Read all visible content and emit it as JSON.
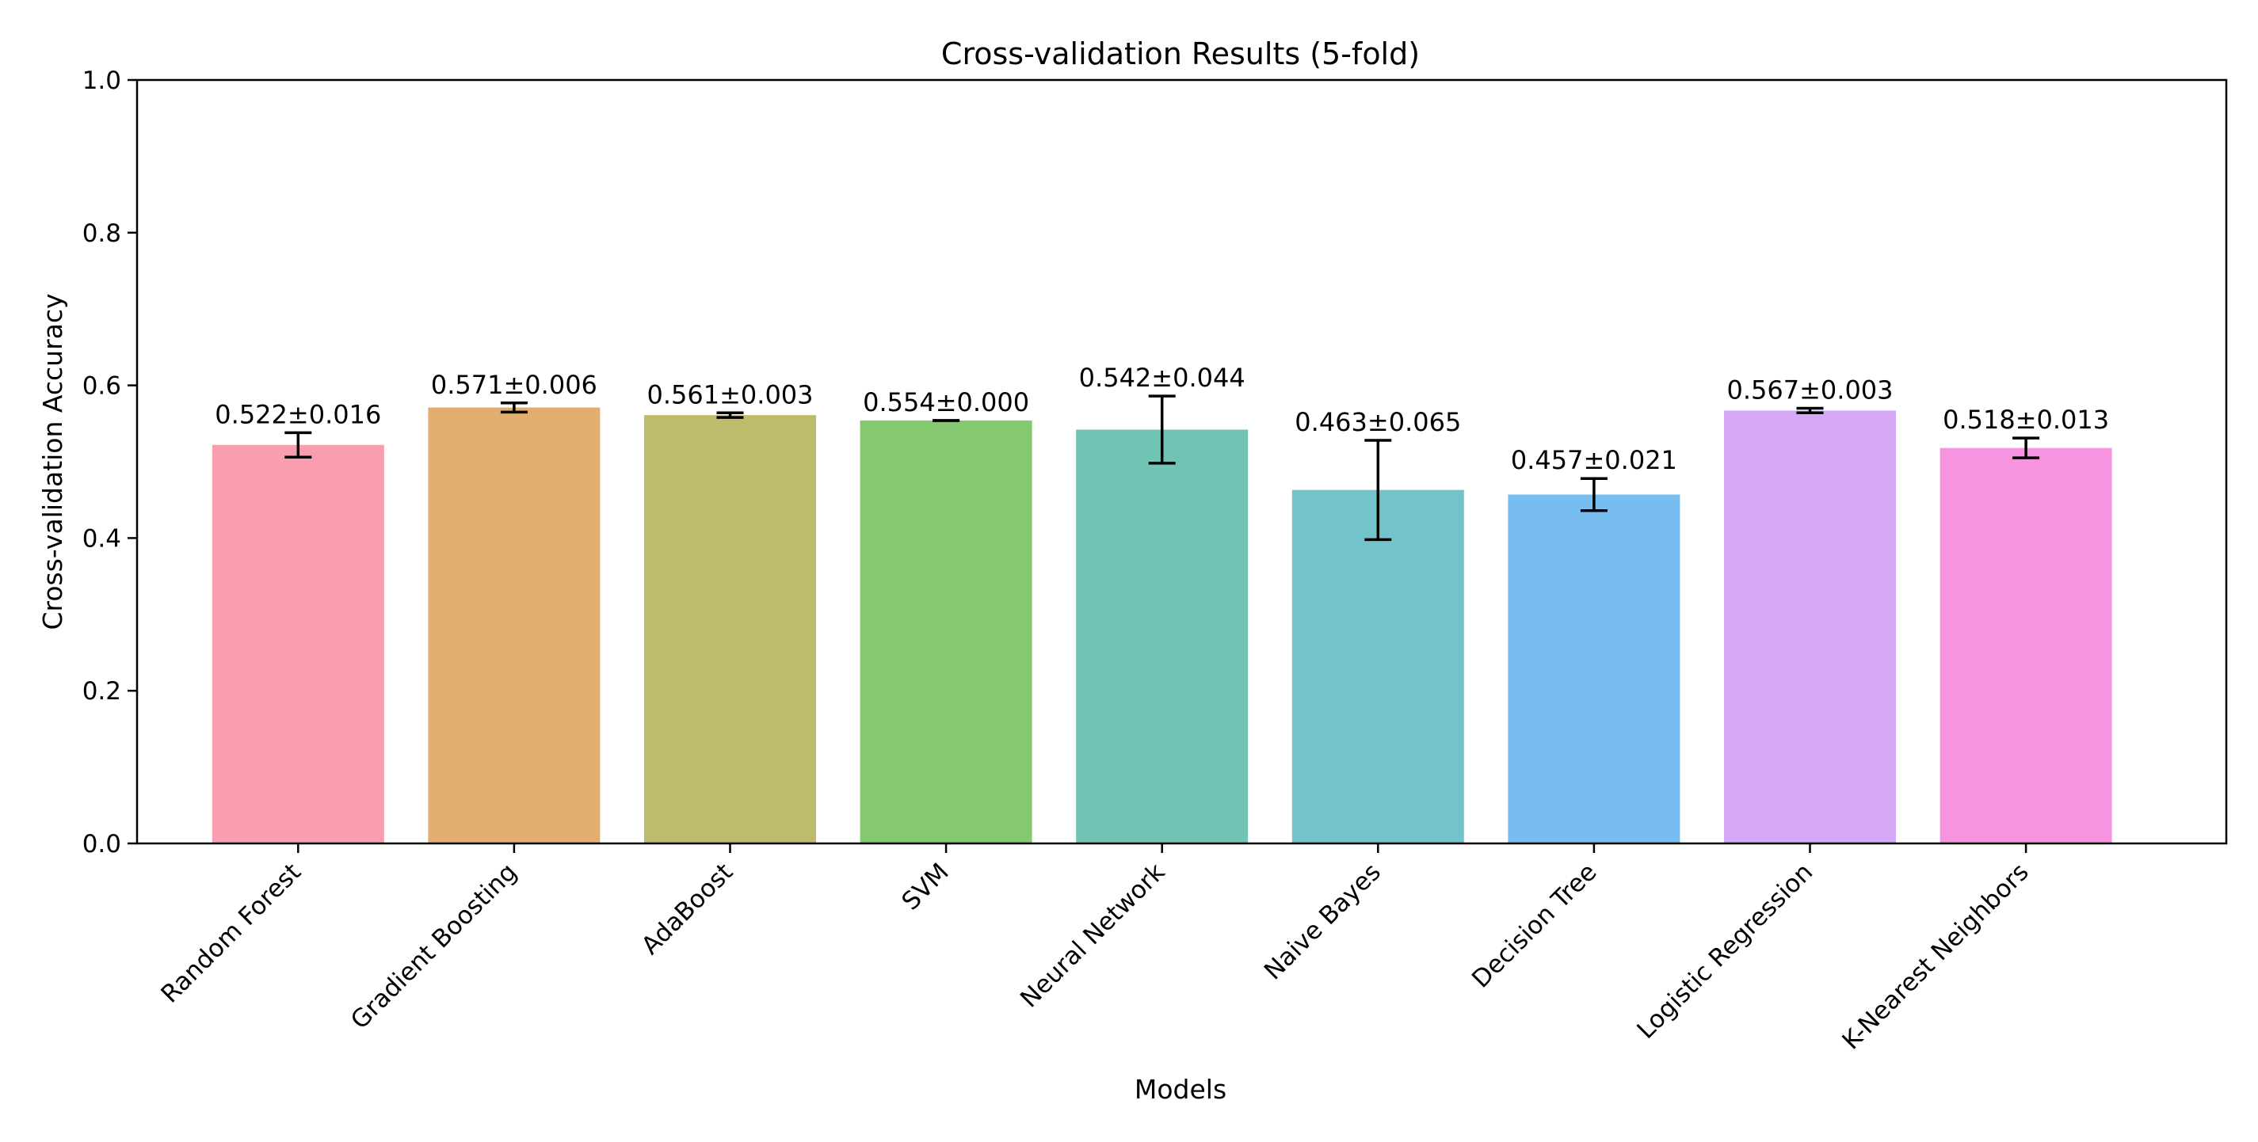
{
  "chart_data": {
    "type": "bar",
    "title": "Cross-validation Results (5-fold)",
    "xlabel": "Models",
    "ylabel": "Cross-validation Accuracy",
    "ylim": [
      0,
      1.0
    ],
    "yticks": [
      "0.0",
      "0.2",
      "0.4",
      "0.6",
      "0.8",
      "1.0"
    ],
    "grid": false,
    "categories": [
      "Random Forest",
      "Gradient Boosting",
      "AdaBoost",
      "SVM",
      "Neural Network",
      "Naive Bayes",
      "Decision Tree",
      "Logistic Regression",
      "K-Nearest Neighbors"
    ],
    "values": [
      0.522,
      0.571,
      0.561,
      0.554,
      0.542,
      0.463,
      0.457,
      0.567,
      0.518
    ],
    "errors": [
      0.016,
      0.006,
      0.003,
      0.0,
      0.044,
      0.065,
      0.021,
      0.003,
      0.013
    ],
    "labels": [
      "0.522±0.016",
      "0.571±0.006",
      "0.561±0.003",
      "0.554±0.000",
      "0.542±0.044",
      "0.463±0.065",
      "0.457±0.021",
      "0.567±0.003",
      "0.518±0.013"
    ],
    "colors": [
      "#f89eae",
      "#e2ae70",
      "#bfbb6d",
      "#84c870",
      "#71c4b3",
      "#72c3ca",
      "#78bdf0",
      "#d4a8f5",
      "#f694e0"
    ]
  }
}
